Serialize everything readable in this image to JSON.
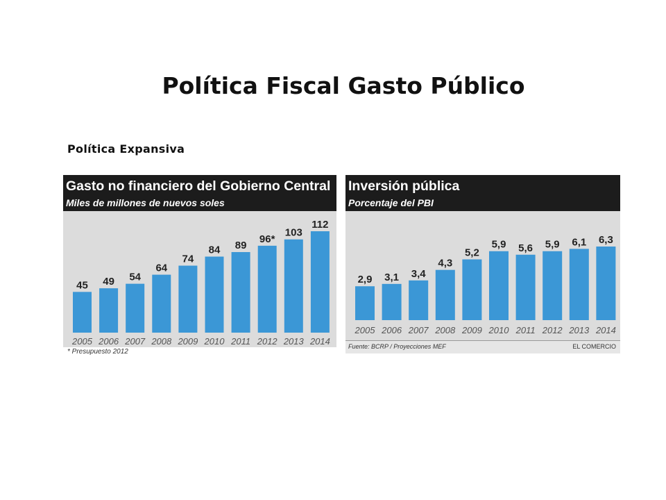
{
  "slide": {
    "title": "Política Fiscal Gasto Público",
    "subtitle": "Política Expansiva"
  },
  "colors": {
    "bar": "#3b97d6",
    "header_bg": "#1c1c1c",
    "chart_bg": "#dcdcdc"
  },
  "chart_data": [
    {
      "type": "bar",
      "title": "Gasto no financiero del Gobierno Central",
      "subtitle": "Miles de millones de nuevos soles",
      "categories": [
        "2005",
        "2006",
        "2007",
        "2008",
        "2009",
        "2010",
        "2011",
        "2012",
        "2013",
        "2014"
      ],
      "values": [
        45,
        49,
        54,
        64,
        74,
        84,
        89,
        96,
        103,
        112
      ],
      "data_labels": [
        "45",
        "49",
        "54",
        "64",
        "74",
        "84",
        "89",
        "96*",
        "103",
        "112"
      ],
      "xlabel": "",
      "ylabel": "",
      "ylim": [
        0,
        112
      ],
      "grid": false,
      "footnote": "* Presupuesto 2012"
    },
    {
      "type": "bar",
      "title": "Inversión pública",
      "subtitle": "Porcentaje del PBI",
      "categories": [
        "2005",
        "2006",
        "2007",
        "2008",
        "2009",
        "2010",
        "2011",
        "2012",
        "2013",
        "2014"
      ],
      "values": [
        2.9,
        3.1,
        3.4,
        4.3,
        5.2,
        5.9,
        5.6,
        5.9,
        6.1,
        6.3
      ],
      "data_labels": [
        "2,9",
        "3,1",
        "3,4",
        "4,3",
        "5,2",
        "5,9",
        "5,6",
        "5,9",
        "6,1",
        "6,3"
      ],
      "xlabel": "",
      "ylabel": "",
      "ylim": [
        0,
        6.3
      ],
      "grid": false,
      "source": "Fuente: BCRP / Proyecciones MEF",
      "brand": "EL COMERCIO"
    }
  ]
}
